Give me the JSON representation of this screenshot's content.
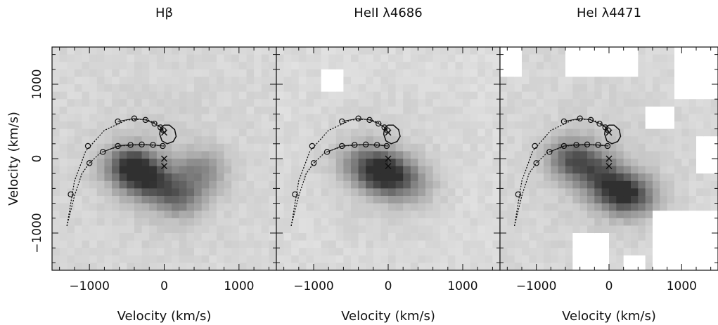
{
  "figure": {
    "ylabel": "Velocity (km/s)"
  },
  "chart_data": [
    {
      "type": "heatmap",
      "title": "Hβ",
      "xlabel": "Velocity (km/s)",
      "ylabel": "Velocity (km/s)",
      "xlim": [
        -1500,
        1500
      ],
      "ylim": [
        -1500,
        1500
      ],
      "xticks": [
        -1000,
        0,
        1000
      ],
      "yticks": [
        -1000,
        0,
        1000
      ],
      "emission_blobs": [
        {
          "vx": -450,
          "vy": -100,
          "peak": 0.78
        },
        {
          "vx": -200,
          "vy": -300,
          "peak": 0.55
        },
        {
          "vx": 200,
          "vy": -500,
          "peak": 0.5
        },
        {
          "vx": 500,
          "vy": -150,
          "peak": 0.35
        }
      ],
      "background_level": 0.12,
      "white_regions": []
    },
    {
      "type": "heatmap",
      "title": "HeII λ4686",
      "xlabel": "Velocity (km/s)",
      "ylabel": "",
      "xlim": [
        -1500,
        1500
      ],
      "ylim": [
        -1500,
        1500
      ],
      "xticks": [
        -1000,
        0,
        1000
      ],
      "yticks": [
        -1000,
        0,
        1000
      ],
      "emission_blobs": [
        {
          "vx": -50,
          "vy": -200,
          "peak": 0.85
        },
        {
          "vx": -350,
          "vy": -50,
          "peak": 0.35
        },
        {
          "vx": 300,
          "vy": -350,
          "peak": 0.3
        }
      ],
      "background_level": 0.1,
      "white_regions": [
        [
          -850,
          1200,
          -650,
          950
        ]
      ]
    },
    {
      "type": "heatmap",
      "title": "HeI λ4471",
      "xlabel": "Velocity (km/s)",
      "ylabel": "",
      "xlim": [
        -1500,
        1500
      ],
      "ylim": [
        -1500,
        1500
      ],
      "xticks": [
        -1000,
        0,
        1000
      ],
      "yticks": [
        -1000,
        0,
        1000
      ],
      "emission_blobs": [
        {
          "vx": -500,
          "vy": 0,
          "peak": 0.6
        },
        {
          "vx": 100,
          "vy": -450,
          "peak": 0.55
        },
        {
          "vx": -150,
          "vy": -200,
          "peak": 0.45
        },
        {
          "vx": 350,
          "vy": -500,
          "peak": 0.5
        }
      ],
      "background_level": 0.12,
      "white_regions": [
        [
          -1500,
          1500,
          -1250,
          1100
        ],
        [
          -600,
          1500,
          400,
          1150
        ],
        [
          900,
          1500,
          1500,
          800
        ],
        [
          500,
          700,
          850,
          450
        ],
        [
          600,
          -700,
          1500,
          -1500
        ],
        [
          -500,
          -1000,
          0,
          -1500
        ],
        [
          200,
          -1300,
          500,
          -1500
        ],
        [
          1200,
          300,
          1500,
          -200
        ]
      ]
    }
  ],
  "overlay": {
    "stream_ballistic": [
      [
        -1300,
        -900
      ],
      [
        -1200,
        -300
      ],
      [
        -1050,
        100
      ],
      [
        -800,
        380
      ],
      [
        -500,
        520
      ],
      [
        -250,
        530
      ],
      [
        -100,
        470
      ],
      [
        -20,
        400
      ],
      [
        0,
        350
      ]
    ],
    "stream_ballistic_markers": [
      [
        -1250,
        -480
      ],
      [
        -1020,
        170
      ],
      [
        -620,
        500
      ],
      [
        -400,
        540
      ],
      [
        -250,
        520
      ],
      [
        -130,
        470
      ],
      [
        -50,
        420
      ],
      [
        -10,
        380
      ]
    ],
    "stream_keplerian": [
      [
        -1300,
        -900
      ],
      [
        -1200,
        -500
      ],
      [
        -1100,
        -200
      ],
      [
        -1000,
        -60
      ],
      [
        -850,
        80
      ],
      [
        -600,
        170
      ],
      [
        -300,
        190
      ],
      [
        0,
        170
      ]
    ],
    "stream_keplerian_markers": [
      [
        -1000,
        -60
      ],
      [
        -820,
        90
      ],
      [
        -620,
        170
      ],
      [
        -450,
        185
      ],
      [
        -300,
        190
      ],
      [
        -150,
        185
      ],
      [
        -20,
        170
      ]
    ],
    "roche_lobe": [
      [
        -50,
        400
      ],
      [
        -60,
        330
      ],
      [
        -30,
        240
      ],
      [
        40,
        200
      ],
      [
        120,
        230
      ],
      [
        160,
        300
      ],
      [
        140,
        390
      ],
      [
        70,
        450
      ],
      [
        0,
        450
      ],
      [
        -40,
        420
      ]
    ],
    "crosses": [
      [
        0,
        350
      ],
      [
        0,
        0
      ],
      [
        0,
        -100
      ]
    ]
  }
}
